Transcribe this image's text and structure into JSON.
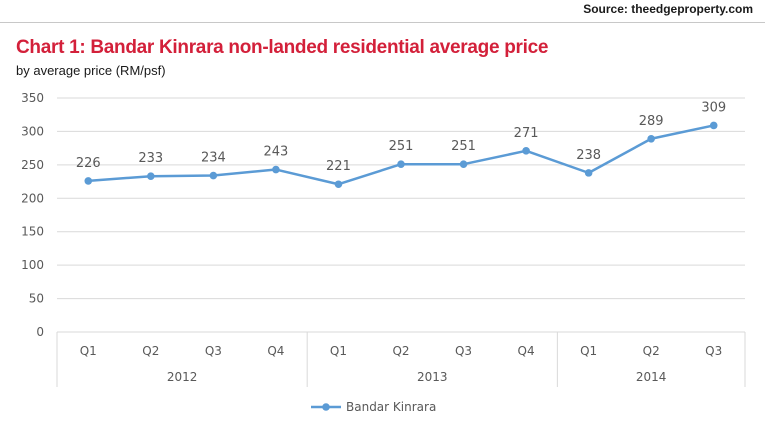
{
  "source": "Source: theedgeproperty.com",
  "colors": {
    "title": "#d3203a",
    "series": "#5b9bd5",
    "grid": "#d9d9d9",
    "text": "#595959"
  },
  "chart_data": {
    "type": "line",
    "title": "Chart 1: Bandar Kinrara non-landed residential average price",
    "subtitle": "by average price (RM/psf)",
    "xlabel": "",
    "ylabel": "",
    "categories": [
      "Q1",
      "Q2",
      "Q3",
      "Q4",
      "Q1",
      "Q2",
      "Q3",
      "Q4",
      "Q1",
      "Q2",
      "Q3"
    ],
    "groups": [
      {
        "label": "2012",
        "count": 4
      },
      {
        "label": "2013",
        "count": 4
      },
      {
        "label": "2014",
        "count": 3
      }
    ],
    "series": [
      {
        "name": "Bandar Kinrara",
        "values": [
          226,
          233,
          234,
          243,
          221,
          251,
          251,
          271,
          238,
          289,
          309
        ]
      }
    ],
    "ylim": [
      0,
      350
    ],
    "yticks": [
      0,
      50,
      100,
      150,
      200,
      250,
      300,
      350
    ],
    "grid": true,
    "data_labels": true,
    "legend": "bottom"
  }
}
